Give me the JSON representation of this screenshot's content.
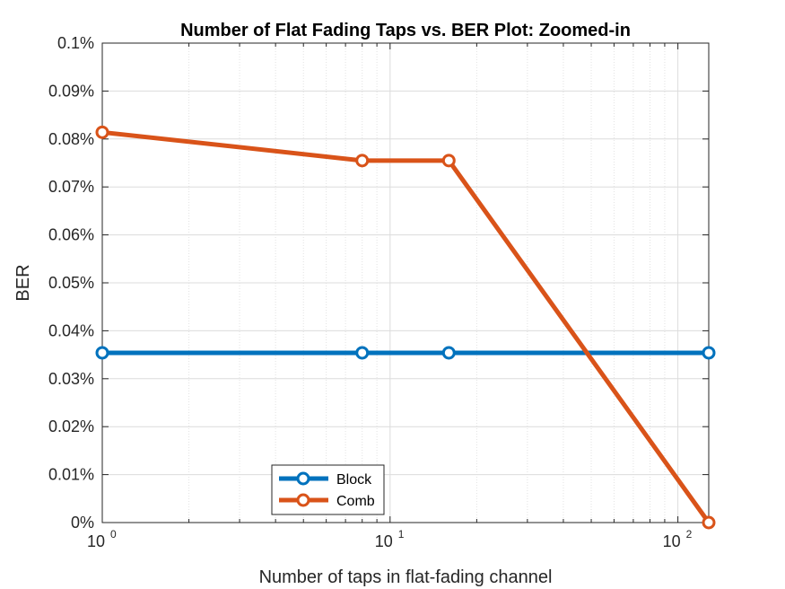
{
  "chart_data": {
    "type": "line",
    "title": "Number of Flat Fading Taps vs. BER Plot: Zoomed-in",
    "xlabel": "Number of taps in flat-fading channel",
    "ylabel": "BER",
    "x_scale": "log",
    "xlim": [
      1,
      128
    ],
    "ylim": [
      0,
      0.1
    ],
    "y_unit": "%",
    "x_ticks": [
      {
        "value": 1,
        "base": "10",
        "exp": "0"
      },
      {
        "value": 10,
        "base": "10",
        "exp": "1"
      },
      {
        "value": 100,
        "base": "10",
        "exp": "2"
      }
    ],
    "y_ticks": [
      "0%",
      "0.01%",
      "0.02%",
      "0.03%",
      "0.04%",
      "0.05%",
      "0.06%",
      "0.07%",
      "0.08%",
      "0.09%",
      "0.1%"
    ],
    "grid": true,
    "legend_position": "bottom-center",
    "series": [
      {
        "name": "Block",
        "color": "#0072BD",
        "x": [
          1,
          8,
          16,
          128
        ],
        "y": [
          0.0354,
          0.0354,
          0.0354,
          0.0354
        ]
      },
      {
        "name": "Comb",
        "color": "#D95319",
        "x": [
          1,
          8,
          16,
          128
        ],
        "y": [
          0.0814,
          0.0755,
          0.0755,
          0.0
        ]
      }
    ]
  }
}
